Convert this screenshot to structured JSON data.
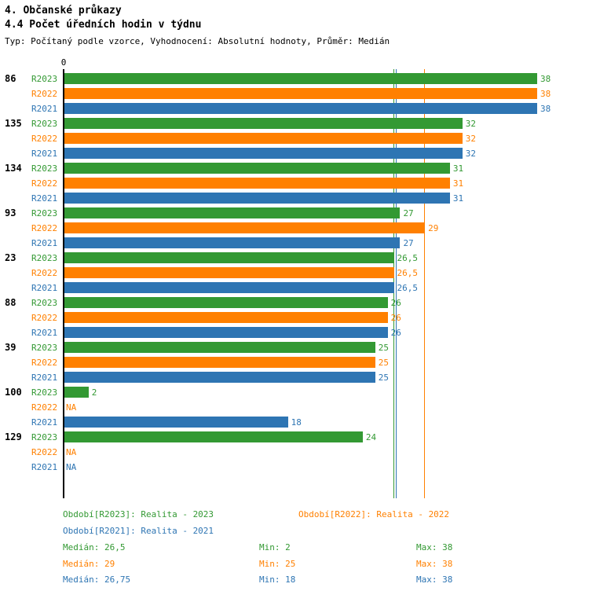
{
  "header": {
    "title1": "4. Občanské průkazy",
    "title2": "4.4 Počet úředních hodin v týdnu",
    "subtitle": "Typ: Počítaný podle vzorce, Vyhodnocení: Absolutní hodnoty, Průměr: Medián"
  },
  "colors": {
    "R2023": "#339933",
    "R2022": "#ff8000",
    "R2021": "#2e75b3",
    "axis": "#000000"
  },
  "chart_data": {
    "type": "bar",
    "orientation": "horizontal",
    "title": "4.4 Počet úředních hodin v týdnu",
    "xlabel": "",
    "ylabel": "",
    "xlim": [
      0,
      38
    ],
    "x_origin_label": "0",
    "grid": false,
    "series_order": [
      "R2023",
      "R2022",
      "R2021"
    ],
    "groups": [
      {
        "id": "86",
        "bars": [
          {
            "series": "R2023",
            "value": 38,
            "label": "38"
          },
          {
            "series": "R2022",
            "value": 38,
            "label": "38"
          },
          {
            "series": "R2021",
            "value": 38,
            "label": "38"
          }
        ]
      },
      {
        "id": "135",
        "bars": [
          {
            "series": "R2023",
            "value": 32,
            "label": "32"
          },
          {
            "series": "R2022",
            "value": 32,
            "label": "32"
          },
          {
            "series": "R2021",
            "value": 32,
            "label": "32"
          }
        ]
      },
      {
        "id": "134",
        "bars": [
          {
            "series": "R2023",
            "value": 31,
            "label": "31"
          },
          {
            "series": "R2022",
            "value": 31,
            "label": "31"
          },
          {
            "series": "R2021",
            "value": 31,
            "label": "31"
          }
        ]
      },
      {
        "id": "93",
        "bars": [
          {
            "series": "R2023",
            "value": 27,
            "label": "27"
          },
          {
            "series": "R2022",
            "value": 29,
            "label": "29"
          },
          {
            "series": "R2021",
            "value": 27,
            "label": "27"
          }
        ]
      },
      {
        "id": "23",
        "bars": [
          {
            "series": "R2023",
            "value": 26.5,
            "label": "26,5"
          },
          {
            "series": "R2022",
            "value": 26.5,
            "label": "26,5"
          },
          {
            "series": "R2021",
            "value": 26.5,
            "label": "26,5"
          }
        ]
      },
      {
        "id": "88",
        "bars": [
          {
            "series": "R2023",
            "value": 26,
            "label": "26"
          },
          {
            "series": "R2022",
            "value": 26,
            "label": "26"
          },
          {
            "series": "R2021",
            "value": 26,
            "label": "26"
          }
        ]
      },
      {
        "id": "39",
        "bars": [
          {
            "series": "R2023",
            "value": 25,
            "label": "25"
          },
          {
            "series": "R2022",
            "value": 25,
            "label": "25"
          },
          {
            "series": "R2021",
            "value": 25,
            "label": "25"
          }
        ]
      },
      {
        "id": "100",
        "bars": [
          {
            "series": "R2023",
            "value": 2,
            "label": "2"
          },
          {
            "series": "R2022",
            "value": null,
            "label": "NA"
          },
          {
            "series": "R2021",
            "value": 18,
            "label": "18"
          }
        ]
      },
      {
        "id": "129",
        "bars": [
          {
            "series": "R2023",
            "value": 24,
            "label": "24"
          },
          {
            "series": "R2022",
            "value": null,
            "label": "NA"
          },
          {
            "series": "R2021",
            "value": null,
            "label": "NA"
          }
        ]
      }
    ],
    "reference_lines": [
      {
        "series": "R2023",
        "stat": "median",
        "value": 26.5,
        "color": "#339933"
      },
      {
        "series": "R2021",
        "stat": "median",
        "value": 26.75,
        "color": "#2e75b3"
      },
      {
        "series": "R2022",
        "stat": "median",
        "value": 29,
        "color": "#ff8000"
      }
    ]
  },
  "legend": {
    "r2023": "Období[R2023]: Realita - 2023",
    "r2022": "Období[R2022]: Realita - 2022",
    "r2021": "Období[R2021]: Realita - 2021"
  },
  "stats": [
    {
      "series": "R2023",
      "median": "Medián: 26,5",
      "min": "Min: 2",
      "max": "Max: 38"
    },
    {
      "series": "R2022",
      "median": "Medián: 29",
      "min": "Min: 25",
      "max": "Max: 38"
    },
    {
      "series": "R2021",
      "median": "Medián: 26,75",
      "min": "Min: 18",
      "max": "Max: 38"
    }
  ]
}
